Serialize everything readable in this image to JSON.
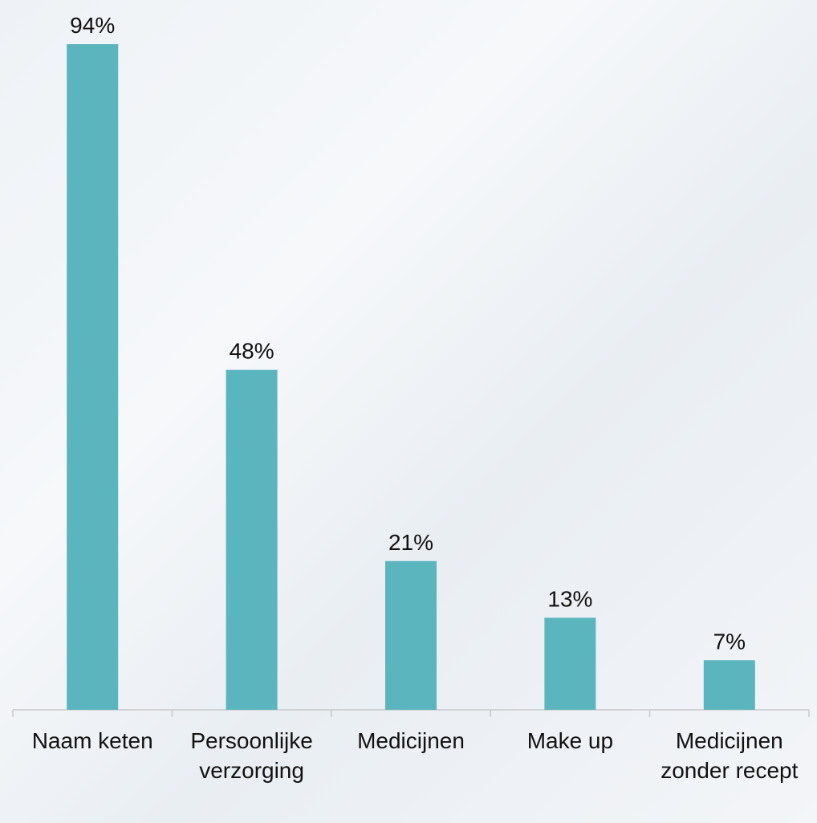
{
  "chart_data": {
    "type": "bar",
    "categories": [
      "Naam keten",
      "Persoonlijke verzorging",
      "Medicijnen",
      "Make up",
      "Medicijnen zonder recept"
    ],
    "values": [
      94,
      48,
      21,
      13,
      7
    ],
    "value_labels": [
      "94%",
      "48%",
      "21%",
      "13%",
      "7%"
    ],
    "color": "#5bb5bf"
  }
}
